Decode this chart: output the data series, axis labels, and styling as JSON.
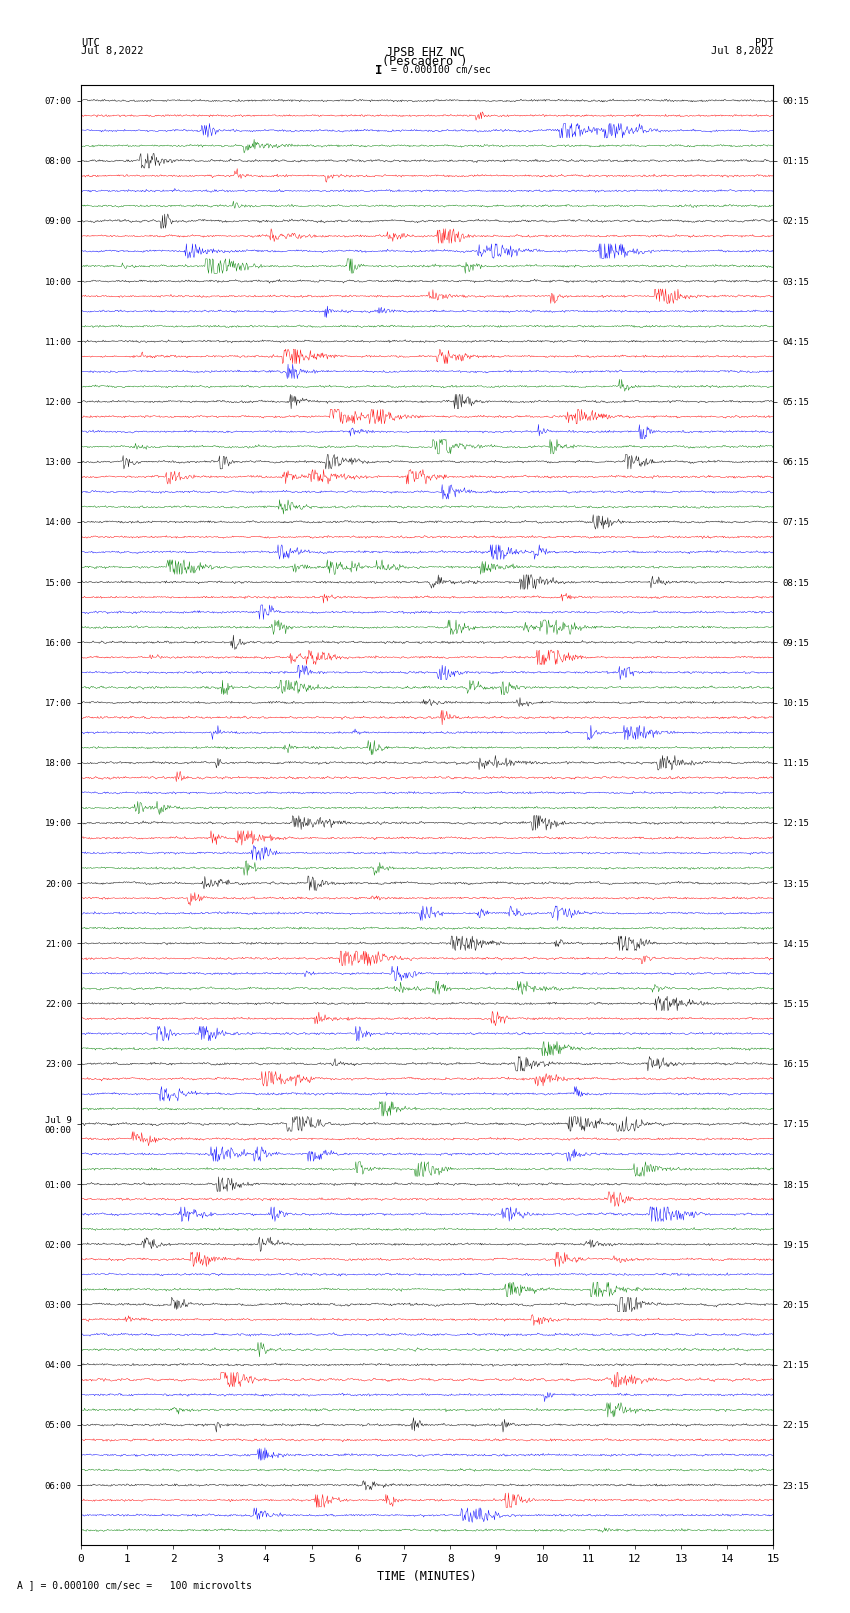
{
  "title_line1": "JPSB EHZ NC",
  "title_line2": "(Pescadero )",
  "scale_text": "I = 0.000100 cm/sec",
  "left_label": "UTC\nJul 8,2022",
  "right_label": "PDT\nJul 8,2022",
  "bottom_label": "TIME (MINUTES)",
  "footnote": "A ] = 0.000100 cm/sec =   100 microvolts",
  "colors": [
    "black",
    "red",
    "blue",
    "green"
  ],
  "utc_times": [
    "07:00",
    "",
    "",
    "",
    "08:00",
    "",
    "",
    "",
    "09:00",
    "",
    "",
    "",
    "10:00",
    "",
    "",
    "",
    "11:00",
    "",
    "",
    "",
    "12:00",
    "",
    "",
    "",
    "13:00",
    "",
    "",
    "",
    "14:00",
    "",
    "",
    "",
    "15:00",
    "",
    "",
    "",
    "16:00",
    "",
    "",
    "",
    "17:00",
    "",
    "",
    "",
    "18:00",
    "",
    "",
    "",
    "19:00",
    "",
    "",
    "",
    "20:00",
    "",
    "",
    "",
    "21:00",
    "",
    "",
    "",
    "22:00",
    "",
    "",
    "",
    "23:00",
    "",
    "",
    "",
    "Jul 9\n00:00",
    "",
    "",
    "",
    "01:00",
    "",
    "",
    "",
    "02:00",
    "",
    "",
    "",
    "03:00",
    "",
    "",
    "",
    "04:00",
    "",
    "",
    "",
    "05:00",
    "",
    "",
    "",
    "06:00",
    "",
    "",
    ""
  ],
  "pdt_times": [
    "00:15",
    "",
    "",
    "",
    "01:15",
    "",
    "",
    "",
    "02:15",
    "",
    "",
    "",
    "03:15",
    "",
    "",
    "",
    "04:15",
    "",
    "",
    "",
    "05:15",
    "",
    "",
    "",
    "06:15",
    "",
    "",
    "",
    "07:15",
    "",
    "",
    "",
    "08:15",
    "",
    "",
    "",
    "09:15",
    "",
    "",
    "",
    "10:15",
    "",
    "",
    "",
    "11:15",
    "",
    "",
    "",
    "12:15",
    "",
    "",
    "",
    "13:15",
    "",
    "",
    "",
    "14:15",
    "",
    "",
    "",
    "15:15",
    "",
    "",
    "",
    "16:15",
    "",
    "",
    "",
    "17:15",
    "",
    "",
    "",
    "18:15",
    "",
    "",
    "",
    "19:15",
    "",
    "",
    "",
    "20:15",
    "",
    "",
    "",
    "21:15",
    "",
    "",
    "",
    "22:15",
    "",
    "",
    "",
    "23:15",
    "",
    "",
    ""
  ],
  "n_traces": 96,
  "n_points": 900,
  "xlim": [
    0,
    15
  ],
  "xticks": [
    0,
    1,
    2,
    3,
    4,
    5,
    6,
    7,
    8,
    9,
    10,
    11,
    12,
    13,
    14,
    15
  ],
  "background_color": "white",
  "trace_amplitude": 0.38,
  "figsize": [
    8.5,
    16.13
  ]
}
